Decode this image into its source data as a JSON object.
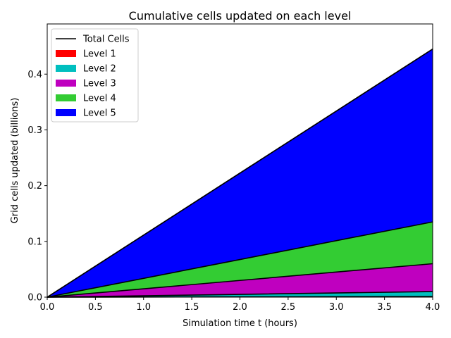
{
  "chart_data": {
    "type": "area",
    "stacked": true,
    "title": "Cumulative cells updated on each level",
    "xlabel": "Simulation time t (hours)",
    "ylabel": "Grid cells updated (billions)",
    "xlim": [
      0,
      4
    ],
    "ylim": [
      0,
      0.49
    ],
    "xticks": [
      0,
      0.5,
      1,
      1.5,
      2,
      2.5,
      3,
      3.5,
      4
    ],
    "xtick_labels": [
      "0.0",
      "0.5",
      "1.0",
      "1.5",
      "2.0",
      "2.5",
      "3.0",
      "3.5",
      "4.0"
    ],
    "yticks": [
      0,
      0.1,
      0.2,
      0.3,
      0.4
    ],
    "ytick_labels": [
      "0.0",
      "0.1",
      "0.2",
      "0.3",
      "0.4"
    ],
    "grid": false,
    "legend_position": "top-left",
    "x": [
      0,
      2,
      4
    ],
    "series": [
      {
        "name": "Level 1",
        "color": "#ff0000",
        "values": [
          0,
          0.0005,
          0.001
        ]
      },
      {
        "name": "Level 2",
        "color": "#00bfbf",
        "values": [
          0,
          0.0045,
          0.009
        ]
      },
      {
        "name": "Level 3",
        "color": "#bf00bf",
        "values": [
          0,
          0.025,
          0.05
        ]
      },
      {
        "name": "Level 4",
        "color": "#33cc33",
        "values": [
          0,
          0.0375,
          0.075
        ]
      },
      {
        "name": "Level 5",
        "color": "#0000ff",
        "values": [
          0,
          0.155,
          0.31
        ]
      }
    ],
    "total": {
      "name": "Total Cells",
      "color": "#000000",
      "values": [
        0,
        0.2225,
        0.445
      ]
    }
  }
}
